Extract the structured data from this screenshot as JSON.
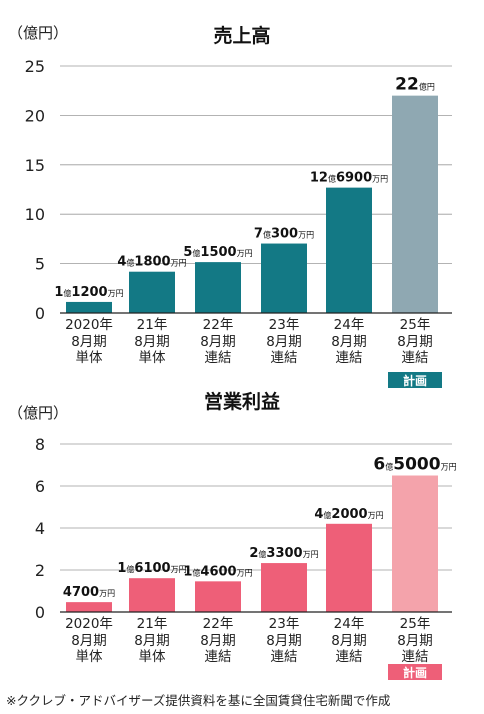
{
  "chart_data": [
    {
      "type": "bar",
      "title": "売上高",
      "unit_label": "（億円）",
      "ylim": [
        0,
        25
      ],
      "yticks": [
        0,
        5,
        10,
        15,
        20,
        25
      ],
      "grid": true,
      "categories": [
        [
          "2020年",
          "8月期",
          "単体"
        ],
        [
          "21年",
          "8月期",
          "単体"
        ],
        [
          "22年",
          "8月期",
          "連結"
        ],
        [
          "23年",
          "8月期",
          "連結"
        ],
        [
          "24年",
          "8月期",
          "連結"
        ],
        [
          "25年",
          "8月期",
          "連結"
        ]
      ],
      "values": [
        1.12,
        4.18,
        5.15,
        7.03,
        12.69,
        22
      ],
      "data_labels": [
        [
          {
            "t": "1",
            "s": "b"
          },
          {
            "t": "億",
            "s": "s"
          },
          {
            "t": "1200",
            "s": "b"
          },
          {
            "t": "万円",
            "s": "s"
          }
        ],
        [
          {
            "t": "4",
            "s": "b"
          },
          {
            "t": "億",
            "s": "s"
          },
          {
            "t": "1800",
            "s": "b"
          },
          {
            "t": "万円",
            "s": "s"
          }
        ],
        [
          {
            "t": "5",
            "s": "b"
          },
          {
            "t": "億",
            "s": "s"
          },
          {
            "t": "1500",
            "s": "b"
          },
          {
            "t": "万円",
            "s": "s"
          }
        ],
        [
          {
            "t": "7",
            "s": "b"
          },
          {
            "t": "億",
            "s": "s"
          },
          {
            "t": "300",
            "s": "b"
          },
          {
            "t": "万円",
            "s": "s"
          }
        ],
        [
          {
            "t": "12",
            "s": "b"
          },
          {
            "t": "億",
            "s": "s"
          },
          {
            "t": "6900",
            "s": "b"
          },
          {
            "t": "万円",
            "s": "s"
          }
        ],
        [
          {
            "t": "22",
            "s": "B"
          },
          {
            "t": "億円",
            "s": "s"
          }
        ]
      ],
      "colors": [
        "#137985",
        "#137985",
        "#137985",
        "#137985",
        "#137985",
        "#8fa8b2"
      ],
      "plan_badge": {
        "text": "計画",
        "index": 5,
        "color": "#137985"
      }
    },
    {
      "type": "bar",
      "title": "営業利益",
      "unit_label": "（億円）",
      "ylim": [
        0,
        8
      ],
      "yticks": [
        0,
        2,
        4,
        6,
        8
      ],
      "grid": true,
      "categories": [
        [
          "2020年",
          "8月期",
          "単体"
        ],
        [
          "21年",
          "8月期",
          "単体"
        ],
        [
          "22年",
          "8月期",
          "連結"
        ],
        [
          "23年",
          "8月期",
          "連結"
        ],
        [
          "24年",
          "8月期",
          "連結"
        ],
        [
          "25年",
          "8月期",
          "連結"
        ]
      ],
      "values": [
        0.47,
        1.61,
        1.46,
        2.33,
        4.2,
        6.5
      ],
      "data_labels": [
        [
          {
            "t": "4700",
            "s": "b"
          },
          {
            "t": "万円",
            "s": "s"
          }
        ],
        [
          {
            "t": "1",
            "s": "b"
          },
          {
            "t": "億",
            "s": "s"
          },
          {
            "t": "6100",
            "s": "b"
          },
          {
            "t": "万円",
            "s": "s"
          }
        ],
        [
          {
            "t": "1",
            "s": "b"
          },
          {
            "t": "億",
            "s": "s"
          },
          {
            "t": "4600",
            "s": "b"
          },
          {
            "t": "万円",
            "s": "s"
          }
        ],
        [
          {
            "t": "2",
            "s": "b"
          },
          {
            "t": "億",
            "s": "s"
          },
          {
            "t": "3300",
            "s": "b"
          },
          {
            "t": "万円",
            "s": "s"
          }
        ],
        [
          {
            "t": "4",
            "s": "b"
          },
          {
            "t": "億",
            "s": "s"
          },
          {
            "t": "2000",
            "s": "b"
          },
          {
            "t": "万円",
            "s": "s"
          }
        ],
        [
          {
            "t": "6",
            "s": "B"
          },
          {
            "t": "億",
            "s": "s"
          },
          {
            "t": "5000",
            "s": "B"
          },
          {
            "t": "万円",
            "s": "s"
          }
        ]
      ],
      "colors": [
        "#ee5f78",
        "#ee5f78",
        "#ee5f78",
        "#ee5f78",
        "#ee5f78",
        "#f4a3ab"
      ],
      "plan_badge": {
        "text": "計画",
        "index": 5,
        "color": "#ee5f78"
      }
    }
  ],
  "footnote": "※ククレブ・アドバイザーズ提供資料を基に全国賃貸住宅新聞で作成"
}
